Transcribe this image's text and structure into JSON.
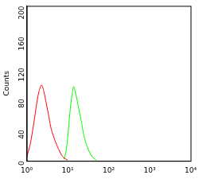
{
  "chart_data": {
    "type": "line",
    "y_label": "Counts",
    "log": "x",
    "grid": false,
    "xlim": [
      1,
      10000
    ],
    "xticks": [
      {
        "value": 1,
        "label": "10⁰"
      },
      {
        "value": 10,
        "label": "10¹"
      },
      {
        "value": 100,
        "label": "10²"
      },
      {
        "value": 1000,
        "label": "10³"
      },
      {
        "value": 10000,
        "label": "10⁴"
      }
    ],
    "ylim": [
      0,
      200
    ],
    "yticks": [
      0,
      40,
      80,
      120,
      160,
      200
    ],
    "series": [
      {
        "color": "#ff0000",
        "x": [
          1.0,
          1.2,
          1.4,
          1.6,
          1.8,
          2.0,
          2.3,
          2.6,
          3.0,
          3.5,
          4.0,
          5.0,
          6.0,
          7.0,
          8.0,
          10.0
        ],
        "values": [
          5,
          20,
          40,
          60,
          78,
          90,
          98,
          90,
          74,
          56,
          40,
          25,
          15,
          8,
          4,
          1
        ]
      },
      {
        "color": "#00ff00",
        "x": [
          8,
          9,
          10,
          11,
          12,
          13,
          14,
          15,
          17,
          19,
          22,
          25,
          30,
          35,
          40,
          50
        ],
        "values": [
          2,
          10,
          30,
          55,
          75,
          88,
          96,
          91,
          78,
          65,
          48,
          32,
          18,
          10,
          5,
          1
        ]
      }
    ]
  }
}
